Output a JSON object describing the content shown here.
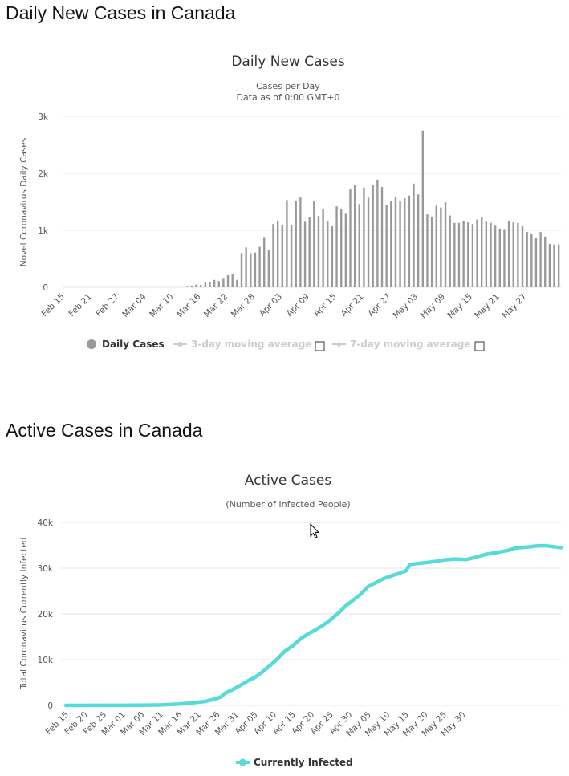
{
  "headings": {
    "daily": "Daily New Cases in Canada",
    "active": "Active Cases in Canada"
  },
  "colors": {
    "bar": "#999999",
    "line": "#57dbd8",
    "grid": "#e6e6e6",
    "legend_inactive": "#cccccc"
  },
  "chart_data": [
    {
      "type": "bar",
      "title": "Daily New Cases",
      "subtitle": [
        "Cases per Day",
        "Data as of 0:00 GMT+0"
      ],
      "ylabel": "Novel Coronavirus Daily Cases",
      "ylim": [
        0,
        3000
      ],
      "yticks": [
        0,
        1000,
        2000,
        3000
      ],
      "ytick_labels": [
        "0",
        "1k",
        "2k",
        "3k"
      ],
      "x_start": "2020-02-15",
      "xtick_labels": [
        "Feb 15",
        "Feb 21",
        "Feb 27",
        "Mar 04",
        "Mar 10",
        "Mar 16",
        "Mar 22",
        "Mar 28",
        "Apr 03",
        "Apr 09",
        "Apr 15",
        "Apr 21",
        "Apr 27",
        "May 03",
        "May 09",
        "May 15",
        "May 21",
        "May 27"
      ],
      "xtick_step": 6,
      "values": [
        0,
        0,
        0,
        0,
        0,
        0,
        0,
        0,
        0,
        0,
        0,
        0,
        0,
        0,
        0,
        0,
        0,
        0,
        0,
        0,
        0,
        0,
        0,
        0,
        0,
        0,
        0,
        10,
        30,
        50,
        40,
        80,
        100,
        130,
        110,
        150,
        210,
        230,
        130,
        600,
        700,
        600,
        610,
        710,
        880,
        660,
        1110,
        1160,
        1100,
        1530,
        1090,
        1510,
        1590,
        1150,
        1230,
        1520,
        1250,
        1370,
        1160,
        1070,
        1420,
        1380,
        1290,
        1720,
        1800,
        1460,
        1750,
        1570,
        1790,
        1890,
        1760,
        1450,
        1520,
        1590,
        1510,
        1560,
        1610,
        1820,
        1630,
        2750,
        1280,
        1240,
        1430,
        1400,
        1490,
        1260,
        1130,
        1130,
        1160,
        1140,
        1110,
        1190,
        1230,
        1150,
        1130,
        1080,
        1030,
        1020,
        1170,
        1140,
        1130,
        1070,
        970,
        930,
        870,
        970,
        890,
        760,
        750,
        750
      ],
      "legend": [
        {
          "name": "Daily Cases",
          "active": true
        },
        {
          "name": "3-day moving average",
          "active": false
        },
        {
          "name": "7-day moving average",
          "active": false
        }
      ]
    },
    {
      "type": "line",
      "title": "Active Cases",
      "subtitle": [
        "(Number of Infected People)"
      ],
      "ylabel": "Total Coronavirus Currently Infected",
      "ylim": [
        0,
        40000
      ],
      "yticks": [
        0,
        10000,
        20000,
        30000,
        40000
      ],
      "ytick_labels": [
        "0",
        "10k",
        "20k",
        "30k",
        "40k"
      ],
      "x_start": "2020-02-15",
      "xtick_labels": [
        "Feb 15",
        "Feb 20",
        "Feb 25",
        "Mar 01",
        "Mar 06",
        "Mar 11",
        "Mar 16",
        "Mar 21",
        "Mar 26",
        "Mar 31",
        "Apr 05",
        "Apr 10",
        "Apr 15",
        "Apr 20",
        "Apr 25",
        "Apr 30",
        "May 05",
        "May 10",
        "May 15",
        "May 20",
        "May 25",
        "May 30"
      ],
      "xtick_step": 5,
      "series": [
        {
          "name": "Currently Infected",
          "points": [
            [
              0,
              0
            ],
            [
              20,
              50
            ],
            [
              25,
              100
            ],
            [
              30,
              300
            ],
            [
              33,
              500
            ],
            [
              35,
              700
            ],
            [
              37,
              900
            ],
            [
              39,
              1300
            ],
            [
              41,
              1800
            ],
            [
              42,
              2600
            ],
            [
              44,
              3400
            ],
            [
              46,
              4300
            ],
            [
              48,
              5300
            ],
            [
              50,
              6100
            ],
            [
              52,
              7300
            ],
            [
              54,
              8700
            ],
            [
              56,
              10200
            ],
            [
              58,
              11900
            ],
            [
              60,
              13000
            ],
            [
              62,
              14500
            ],
            [
              64,
              15600
            ],
            [
              66,
              16500
            ],
            [
              68,
              17500
            ],
            [
              70,
              18700
            ],
            [
              72,
              20100
            ],
            [
              74,
              21700
            ],
            [
              76,
              23000
            ],
            [
              78,
              24300
            ],
            [
              80,
              26000
            ],
            [
              82,
              26800
            ],
            [
              84,
              27700
            ],
            [
              86,
              28300
            ],
            [
              88,
              28800
            ],
            [
              90,
              29400
            ],
            [
              91,
              30800
            ],
            [
              95,
              31200
            ],
            [
              98,
              31500
            ],
            [
              100,
              31800
            ],
            [
              103,
              32000
            ],
            [
              106,
              31900
            ],
            [
              108,
              32300
            ],
            [
              111,
              33000
            ],
            [
              114,
              33400
            ],
            [
              117,
              33900
            ],
            [
              119,
              34400
            ],
            [
              122,
              34600
            ],
            [
              125,
              34900
            ],
            [
              127,
              34900
            ],
            [
              130,
              34600
            ],
            [
              131,
              34500
            ]
          ]
        }
      ]
    }
  ]
}
